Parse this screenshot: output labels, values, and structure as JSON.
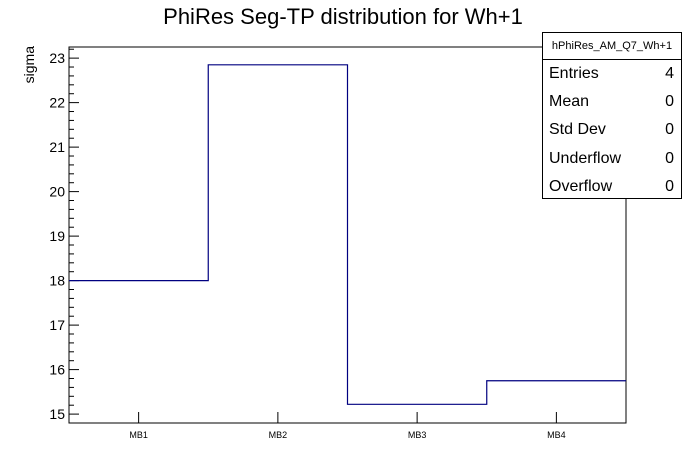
{
  "chart_data": {
    "type": "histogram-step",
    "title": "PhiRes Seg-TP distribution for Wh+1",
    "xlabel": "",
    "ylabel": "sigma",
    "categories": [
      "MB1",
      "MB2",
      "MB3",
      "MB4"
    ],
    "values": [
      18.0,
      22.85,
      15.22,
      15.75
    ],
    "ylim": [
      14.8,
      23.25
    ],
    "yticks": [
      15,
      16,
      17,
      18,
      19,
      20,
      21,
      22,
      23
    ],
    "line_color": "#000080"
  },
  "stats": {
    "name": "hPhiRes_AM_Q7_Wh+1",
    "rows": [
      {
        "label": "Entries",
        "value": "4"
      },
      {
        "label": "Mean",
        "value": "0"
      },
      {
        "label": "Std Dev",
        "value": "0"
      },
      {
        "label": "Underflow",
        "value": "0"
      },
      {
        "label": "Overflow",
        "value": "0"
      }
    ]
  }
}
